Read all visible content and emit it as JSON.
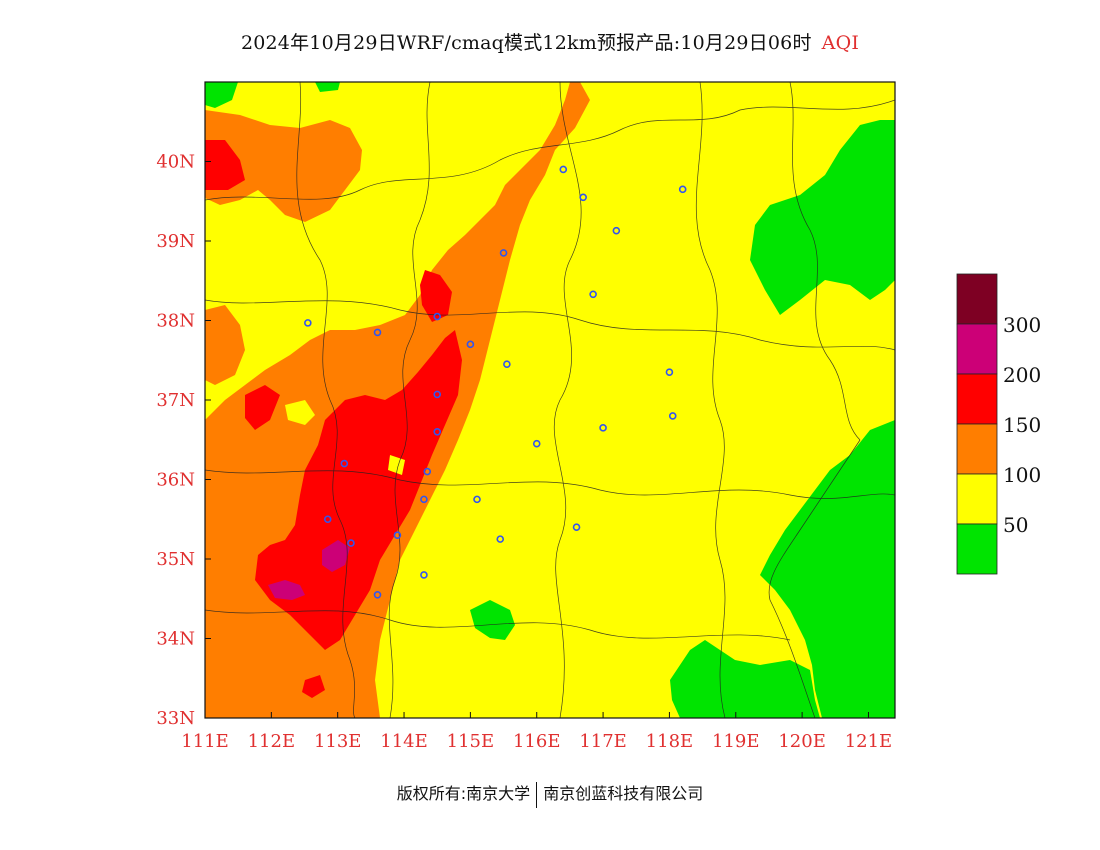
{
  "title": {
    "main": "2024年10月29日WRF/cmaq模式12km预报产品:10月29日06时",
    "product": "AQI",
    "product_color": "#e03030"
  },
  "map": {
    "lon_range": [
      111,
      121.4
    ],
    "lat_range": [
      33,
      41
    ],
    "lon_ticks": [
      "111E",
      "112E",
      "113E",
      "114E",
      "115E",
      "116E",
      "117E",
      "118E",
      "119E",
      "120E",
      "121E"
    ],
    "lat_ticks": [
      "33N",
      "34N",
      "35N",
      "36N",
      "37N",
      "38N",
      "39N",
      "40N"
    ],
    "tick_color": "#e03030",
    "city_markers": [
      [
        116.4,
        39.9
      ],
      [
        116.7,
        39.55
      ],
      [
        117.2,
        39.13
      ],
      [
        118.2,
        39.65
      ],
      [
        116.85,
        38.33
      ],
      [
        115.5,
        38.85
      ],
      [
        114.5,
        38.05
      ],
      [
        113.6,
        37.85
      ],
      [
        112.55,
        37.97
      ],
      [
        115.0,
        37.7
      ],
      [
        115.55,
        37.45
      ],
      [
        118.0,
        37.35
      ],
      [
        117.0,
        36.65
      ],
      [
        118.05,
        36.8
      ],
      [
        114.5,
        37.07
      ],
      [
        114.5,
        36.6
      ],
      [
        114.35,
        36.1
      ],
      [
        113.1,
        36.2
      ],
      [
        116.0,
        36.45
      ],
      [
        114.3,
        35.75
      ],
      [
        115.1,
        35.75
      ],
      [
        112.85,
        35.5
      ],
      [
        113.9,
        35.3
      ],
      [
        115.45,
        35.25
      ],
      [
        116.6,
        35.4
      ],
      [
        113.2,
        35.2
      ],
      [
        114.3,
        34.8
      ],
      [
        113.6,
        34.55
      ]
    ]
  },
  "legend": {
    "labels": [
      "50",
      "100",
      "150",
      "200",
      "300"
    ],
    "levels": [
      {
        "range": "0-50",
        "color": "#00e400"
      },
      {
        "range": "50-100",
        "color": "#ffff00"
      },
      {
        "range": "100-150",
        "color": "#ff7e00"
      },
      {
        "range": "150-200",
        "color": "#ff0000"
      },
      {
        "range": "200-300",
        "color": "#cc0077"
      },
      {
        "range": ">300",
        "color": "#7e0023"
      }
    ]
  },
  "footer": {
    "left": "版权所有:南京大学",
    "right": "南京创蓝科技有限公司"
  }
}
